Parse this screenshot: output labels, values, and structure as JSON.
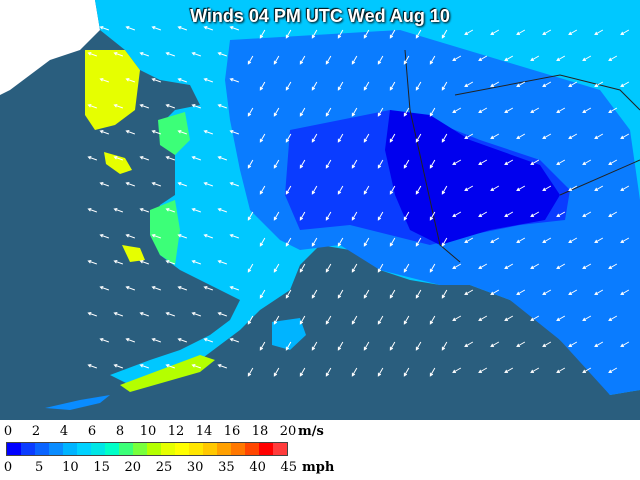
{
  "title": "Winds 04 PM UTC Wed Aug 10",
  "legend": {
    "ms_labels": [
      "0",
      "2",
      "4",
      "6",
      "8",
      "10",
      "12",
      "14",
      "16",
      "18",
      "20"
    ],
    "ms_unit": "m/s",
    "mph_labels": [
      "0",
      "5",
      "10",
      "15",
      "20",
      "25",
      "30",
      "35",
      "40",
      "45"
    ],
    "mph_unit": "mph",
    "colors": [
      "#0000ff",
      "#0a3cff",
      "#0a64ff",
      "#0a8cff",
      "#00b4ff",
      "#00d2ff",
      "#00e6e6",
      "#00ffc8",
      "#3cff78",
      "#78ff3c",
      "#b4ff00",
      "#e6ff00",
      "#ffff00",
      "#ffe600",
      "#ffc800",
      "#ffa000",
      "#ff7800",
      "#ff4600",
      "#ff0000",
      "#ff3c3c"
    ]
  },
  "colors": {
    "ocean": "#2a5e7e",
    "land_base": "#0a8cff"
  }
}
